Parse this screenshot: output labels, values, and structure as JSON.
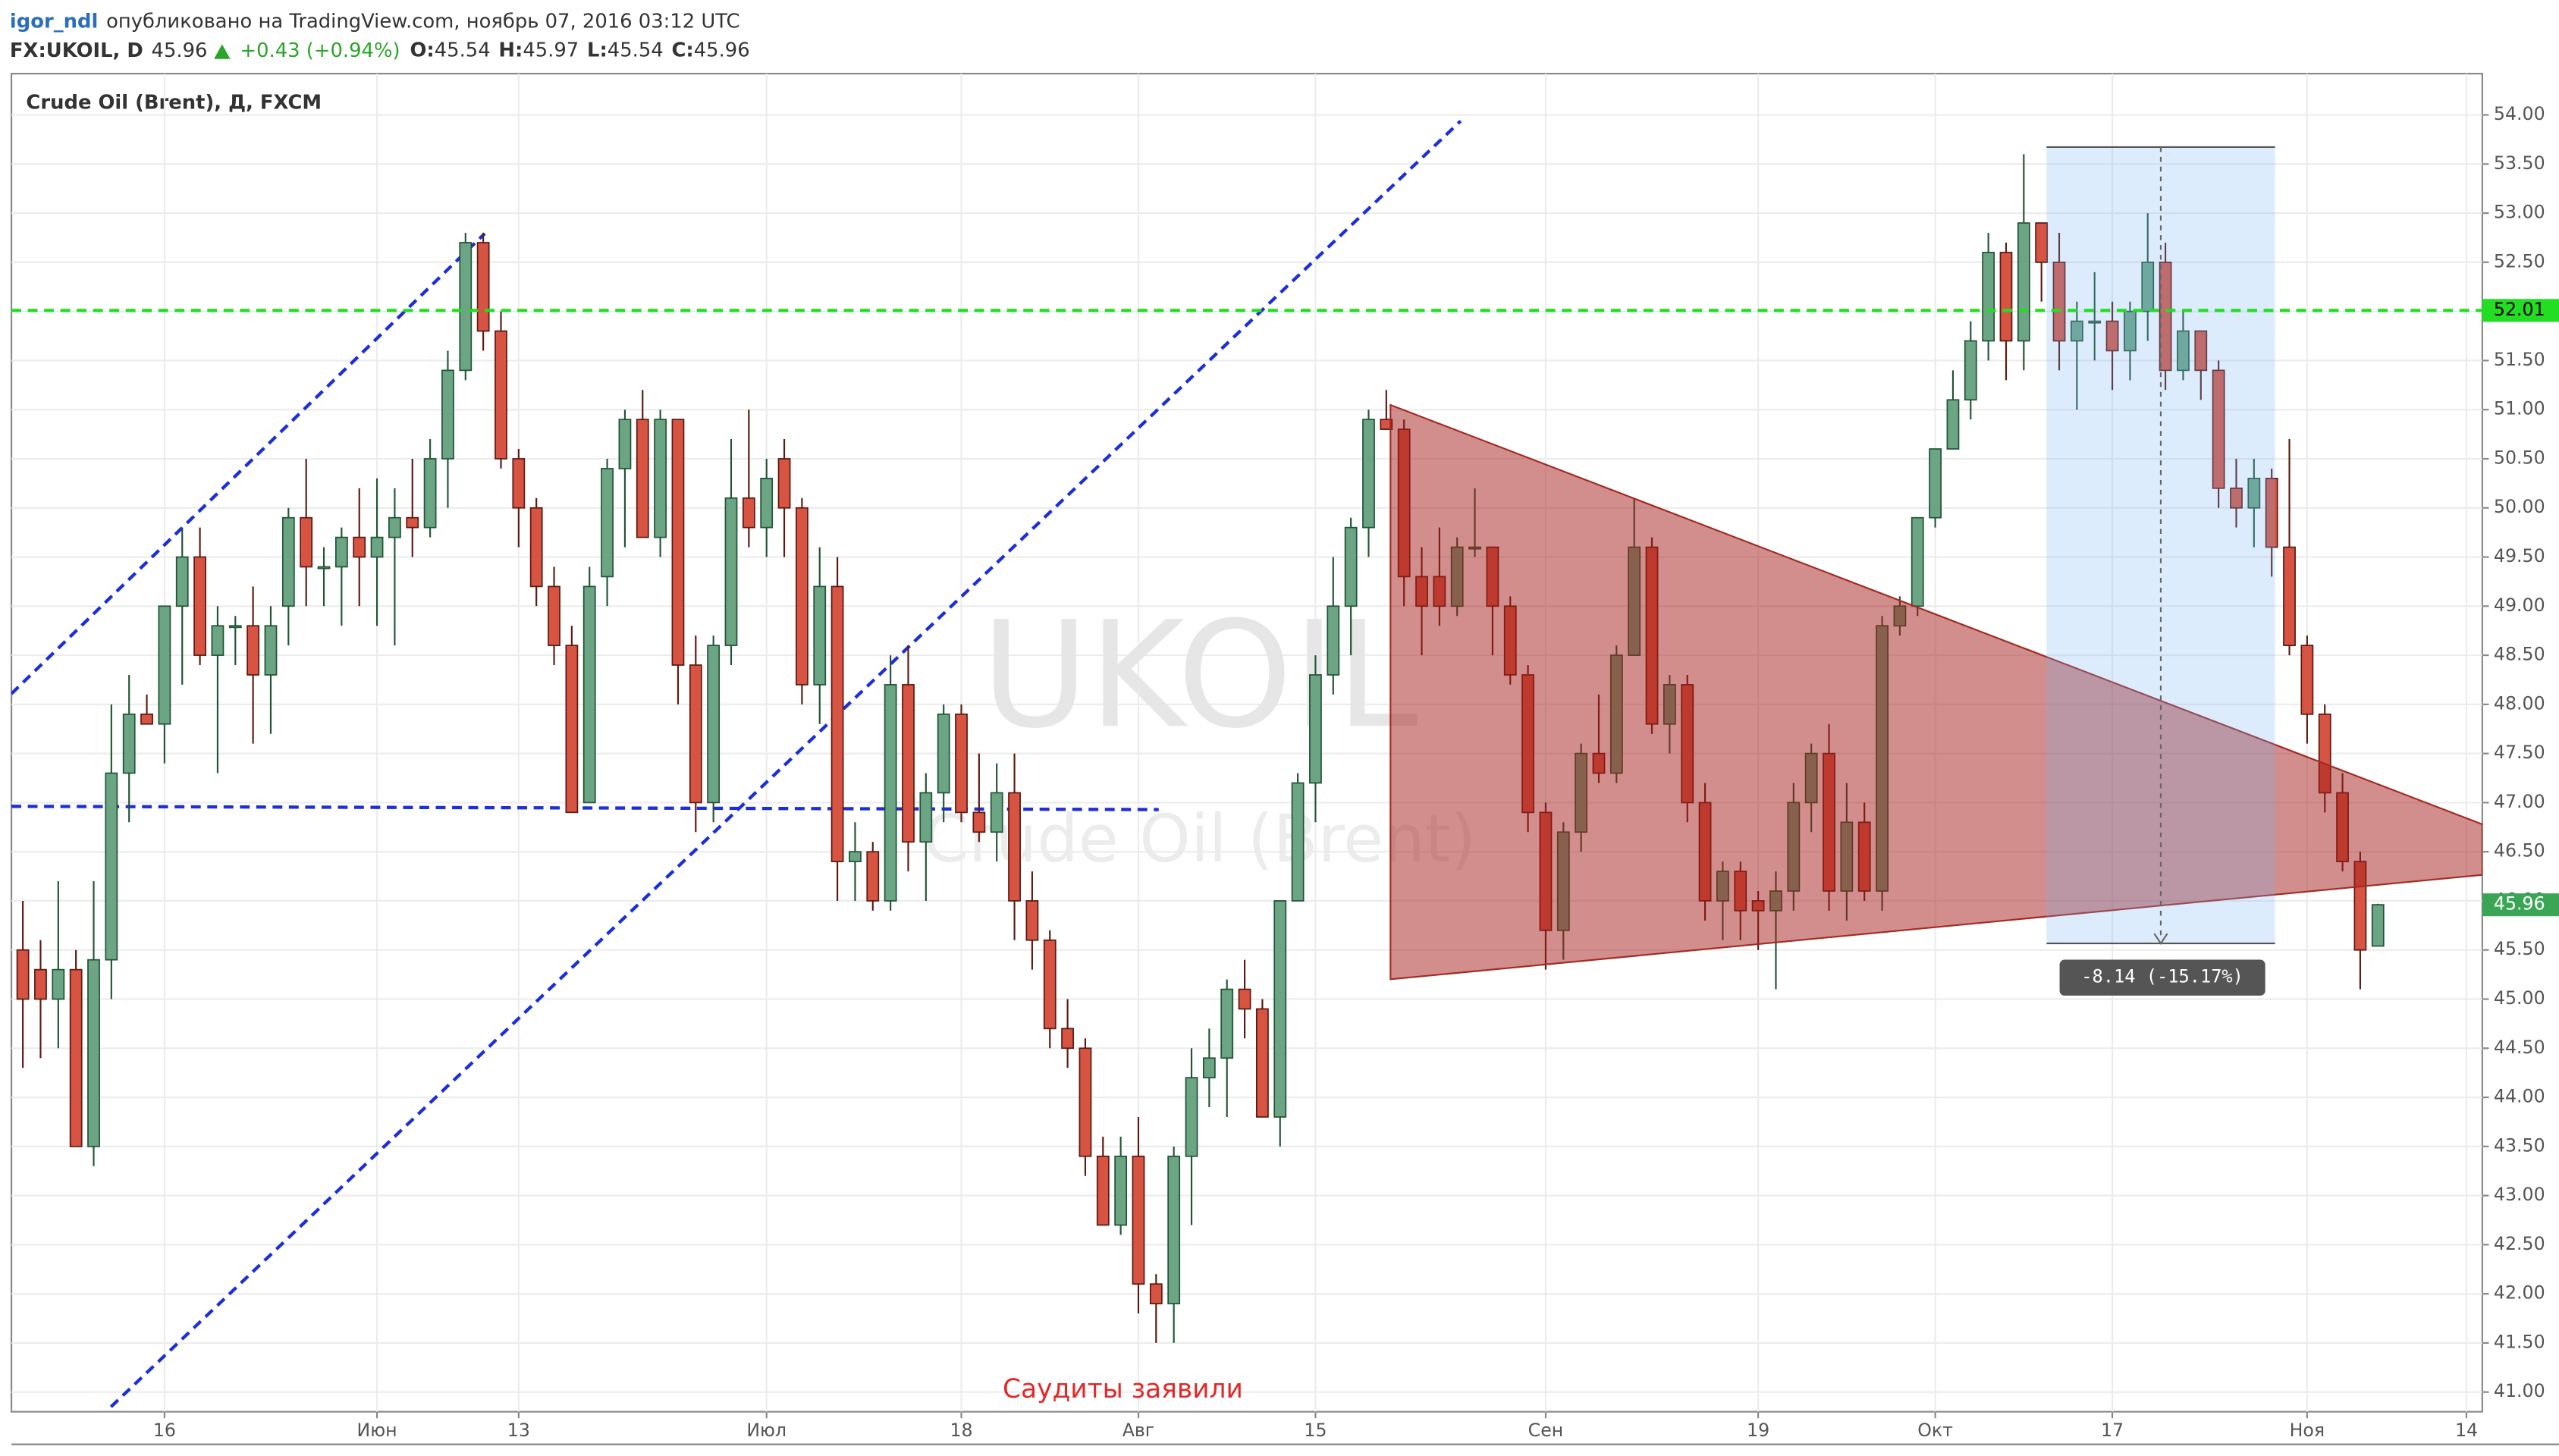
{
  "header": {
    "author": "igor_ndl",
    "published": "опубликовано на TradingView.com, ноябрь 07, 2016 03:12 UTC",
    "symbol": "FX:UKOIL, D",
    "last": "45.96",
    "change": "+0.43 (+0.94%)",
    "ohlc": [
      {
        "label": "O:",
        "value": "45.54"
      },
      {
        "label": "H:",
        "value": "45.97"
      },
      {
        "label": "L:",
        "value": "45.54"
      },
      {
        "label": "C:",
        "value": "45.96"
      }
    ]
  },
  "chart_data": {
    "type": "candlestick",
    "title": "Crude Oil (Brent), Д, FXCM",
    "watermark": [
      "UKOIL",
      "Crude Oil (Brent)"
    ],
    "annotation": "Саудиты заявили",
    "measure_label": "-8.14 (-15.17%)",
    "hline": {
      "value": 52.01,
      "color": "#22dd22"
    },
    "last_price": 45.96,
    "up_color": "#6ba583",
    "down_color": "#d75442",
    "categories": [
      null,
      null,
      null,
      null,
      null,
      null,
      null,
      null,
      "16",
      null,
      null,
      null,
      null,
      null,
      null,
      null,
      null,
      null,
      null,
      null,
      "Июн",
      null,
      null,
      null,
      null,
      null,
      null,
      null,
      "13",
      null,
      null,
      null,
      null,
      null,
      null,
      null,
      null,
      null,
      null,
      null,
      null,
      null,
      "Июл",
      null,
      null,
      null,
      null,
      null,
      null,
      null,
      null,
      null,
      null,
      "18",
      null,
      null,
      null,
      null,
      null,
      null,
      null,
      null,
      null,
      "Авг",
      null,
      null,
      null,
      null,
      null,
      null,
      null,
      null,
      null,
      "15",
      null,
      null,
      null,
      null,
      null,
      null,
      null,
      null,
      null,
      null,
      null,
      null,
      "Сен",
      null,
      null,
      null,
      null,
      null,
      null,
      null,
      null,
      null,
      null,
      null,
      "19",
      null,
      null,
      null,
      null,
      null,
      null,
      null,
      null,
      null,
      "Окт",
      null,
      null,
      null,
      null,
      null,
      null,
      null,
      null,
      null,
      "17",
      null,
      null,
      null,
      null,
      null,
      null,
      null,
      null,
      null,
      null,
      "Ноя",
      null,
      null,
      null,
      null,
      null,
      null,
      null,
      null,
      "14"
    ],
    "open": [
      45.5,
      45.3,
      45.0,
      45.3,
      43.5,
      45.4,
      47.3,
      47.9,
      47.8,
      49.0,
      49.5,
      48.5,
      48.8,
      48.8,
      48.3,
      49.0,
      49.9,
      49.4,
      49.4,
      49.7,
      49.5,
      49.7,
      49.9,
      49.8,
      50.5,
      51.4,
      52.7,
      51.8,
      50.5,
      50.0,
      49.2,
      48.6,
      47.0,
      49.3,
      50.4,
      50.9,
      49.7,
      50.9,
      48.4,
      47.0,
      48.6,
      50.1,
      49.8,
      50.5,
      50.0,
      48.2,
      49.2,
      46.4,
      46.5,
      46.0,
      48.2,
      46.6,
      47.1,
      47.9,
      46.9,
      46.7,
      47.1,
      46.0,
      45.6,
      44.7,
      44.5,
      43.4,
      42.7,
      43.4,
      42.1,
      41.9,
      43.4,
      44.2,
      44.4,
      45.1,
      44.9,
      43.8,
      46.0,
      47.2,
      48.3,
      49.0,
      49.8,
      50.9,
      50.8,
      49.3,
      49.3,
      49.0,
      49.6,
      49.6,
      49.0,
      48.3,
      46.9,
      45.7,
      46.7,
      47.5,
      47.3,
      48.5,
      49.6,
      47.8,
      48.2,
      47.0,
      46.0,
      46.3,
      46.0,
      45.9,
      46.1,
      47.0,
      47.5,
      46.1,
      46.8,
      46.1,
      48.8,
      49.0,
      49.9,
      50.6,
      51.1,
      51.7,
      52.6,
      51.7,
      52.9,
      52.5,
      51.7,
      51.9,
      51.9,
      51.6,
      52.0,
      52.5,
      51.4,
      51.8,
      51.4,
      50.2,
      50.0,
      50.3,
      49.6,
      48.6,
      47.9,
      47.1,
      46.4,
      45.54,
      null,
      null,
      null,
      null,
      null
    ],
    "high": [
      46.0,
      45.6,
      46.2,
      45.5,
      46.2,
      48.0,
      48.3,
      48.1,
      49.0,
      49.8,
      49.8,
      49.0,
      48.9,
      49.2,
      49.0,
      50.0,
      50.5,
      49.6,
      49.8,
      50.2,
      50.3,
      50.2,
      50.5,
      50.7,
      51.6,
      52.8,
      52.8,
      52.0,
      50.6,
      50.1,
      49.4,
      48.8,
      49.4,
      50.5,
      51.0,
      51.2,
      51.0,
      50.9,
      48.7,
      48.7,
      50.7,
      51.0,
      50.5,
      50.7,
      50.1,
      49.6,
      49.5,
      46.8,
      46.6,
      48.5,
      48.6,
      47.3,
      48.0,
      48.0,
      47.5,
      47.4,
      47.5,
      46.3,
      45.7,
      45.0,
      44.6,
      43.6,
      43.6,
      43.8,
      42.2,
      43.5,
      44.5,
      44.7,
      45.2,
      45.4,
      45.0,
      46.0,
      47.3,
      48.5,
      49.5,
      49.9,
      51.0,
      51.2,
      50.9,
      49.6,
      49.8,
      49.7,
      50.2,
      49.6,
      49.1,
      48.4,
      47.0,
      46.8,
      47.6,
      48.1,
      48.6,
      50.1,
      49.7,
      48.3,
      48.3,
      47.2,
      46.4,
      46.4,
      46.1,
      46.3,
      47.2,
      47.6,
      47.8,
      47.2,
      47.0,
      48.9,
      49.1,
      49.9,
      50.6,
      51.4,
      51.9,
      52.8,
      52.7,
      53.6,
      52.9,
      52.8,
      52.1,
      52.4,
      52.1,
      52.1,
      53.0,
      52.7,
      52.0,
      51.8,
      51.5,
      50.5,
      50.5,
      50.4,
      50.7,
      48.7,
      48.0,
      47.3,
      46.5,
      45.97,
      null,
      null,
      null,
      null,
      null
    ],
    "low": [
      44.3,
      44.4,
      44.5,
      43.5,
      43.3,
      45.0,
      46.8,
      47.8,
      47.4,
      48.2,
      48.4,
      47.3,
      48.4,
      47.6,
      47.7,
      48.6,
      49.0,
      49.0,
      48.8,
      49.0,
      48.8,
      48.6,
      49.5,
      49.7,
      50.0,
      51.3,
      51.6,
      50.4,
      49.6,
      49.0,
      48.4,
      46.9,
      47.0,
      49.0,
      49.6,
      49.7,
      49.5,
      48.0,
      46.7,
      46.8,
      48.4,
      49.6,
      49.5,
      49.5,
      48.0,
      47.8,
      46.0,
      46.0,
      45.9,
      45.9,
      46.3,
      46.0,
      46.8,
      46.8,
      46.6,
      46.4,
      45.6,
      45.3,
      44.5,
      44.3,
      43.2,
      42.7,
      42.6,
      41.8,
      41.5,
      41.5,
      42.7,
      43.9,
      43.8,
      44.6,
      43.8,
      43.5,
      46.0,
      46.8,
      48.1,
      48.5,
      49.5,
      50.8,
      49.0,
      48.5,
      48.8,
      48.9,
      49.5,
      48.5,
      48.2,
      46.7,
      45.3,
      45.4,
      46.5,
      47.2,
      47.2,
      48.5,
      47.7,
      47.5,
      46.8,
      45.8,
      45.6,
      45.6,
      45.5,
      45.1,
      45.9,
      46.7,
      45.9,
      45.8,
      46.0,
      45.9,
      48.7,
      48.9,
      49.8,
      50.6,
      50.9,
      51.5,
      51.3,
      51.4,
      52.1,
      51.4,
      51.0,
      51.5,
      51.2,
      51.3,
      51.7,
      51.2,
      51.3,
      51.1,
      50.0,
      49.8,
      49.6,
      49.3,
      48.5,
      47.6,
      46.9,
      46.3,
      45.1,
      45.54,
      null,
      null,
      null,
      null,
      null
    ],
    "close": [
      45.0,
      45.0,
      45.3,
      43.5,
      45.4,
      47.3,
      47.9,
      47.8,
      49.0,
      49.5,
      48.5,
      48.8,
      48.8,
      48.3,
      48.8,
      49.9,
      49.4,
      49.4,
      49.7,
      49.5,
      49.7,
      49.9,
      49.8,
      50.5,
      51.4,
      52.7,
      51.8,
      50.5,
      50.0,
      49.2,
      48.6,
      46.9,
      49.2,
      50.4,
      50.9,
      49.7,
      50.9,
      48.4,
      47.0,
      48.6,
      50.1,
      49.8,
      50.3,
      50.0,
      48.2,
      49.2,
      46.4,
      46.5,
      46.0,
      48.2,
      46.6,
      47.1,
      47.9,
      46.9,
      46.7,
      47.1,
      46.0,
      45.6,
      44.7,
      44.5,
      43.4,
      42.7,
      43.4,
      42.1,
      41.9,
      43.4,
      44.2,
      44.4,
      45.1,
      44.9,
      43.8,
      46.0,
      47.2,
      48.3,
      49.0,
      49.8,
      50.9,
      50.8,
      49.3,
      49.0,
      49.0,
      49.6,
      49.6,
      49.0,
      48.3,
      46.9,
      45.7,
      46.7,
      47.5,
      47.3,
      48.5,
      49.6,
      47.8,
      48.2,
      47.0,
      46.0,
      46.3,
      45.9,
      45.9,
      46.1,
      47.0,
      47.5,
      46.1,
      46.8,
      46.1,
      48.8,
      49.0,
      49.9,
      50.6,
      51.1,
      51.7,
      52.6,
      51.7,
      52.9,
      52.5,
      51.7,
      51.9,
      51.9,
      51.6,
      52.0,
      52.5,
      51.4,
      51.8,
      51.4,
      50.2,
      50.0,
      50.3,
      49.6,
      48.6,
      47.9,
      47.1,
      46.4,
      45.5,
      45.96,
      null,
      null,
      null,
      null,
      null
    ],
    "ylim": [
      40.8,
      54.42
    ],
    "yticks": [
      {
        "value": 41,
        "label": "41.00"
      },
      {
        "value": 41.5,
        "label": "41.50"
      },
      {
        "value": 42,
        "label": "42.00"
      },
      {
        "value": 42.5,
        "label": "42.50"
      },
      {
        "value": 43,
        "label": "43.00"
      },
      {
        "value": 43.5,
        "label": "43.50"
      },
      {
        "value": 44,
        "label": "44.00"
      },
      {
        "value": 44.5,
        "label": "44.50"
      },
      {
        "value": 45,
        "label": "45.00"
      },
      {
        "value": 45.5,
        "label": "45.50"
      },
      {
        "value": 46,
        "label": "46.00"
      },
      {
        "value": 46.5,
        "label": "46.50"
      },
      {
        "value": 47,
        "label": "47.00"
      },
      {
        "value": 47.5,
        "label": "47.50"
      },
      {
        "value": 48,
        "label": "48.00"
      },
      {
        "value": 48.5,
        "label": "48.50"
      },
      {
        "value": 49,
        "label": "49.00"
      },
      {
        "value": 49.5,
        "label": "49.50"
      },
      {
        "value": 50,
        "label": "50.00"
      },
      {
        "value": 50.5,
        "label": "50.50"
      },
      {
        "value": 51,
        "label": "51.00"
      },
      {
        "value": 51.5,
        "label": "51.50"
      },
      {
        "value": 52,
        "label": "52.00"
      },
      {
        "value": 52.5,
        "label": "52.50"
      },
      {
        "value": 53,
        "label": "53.00"
      },
      {
        "value": 53.5,
        "label": "53.50"
      },
      {
        "value": 54,
        "label": "54.00"
      }
    ],
    "grid": true
  }
}
